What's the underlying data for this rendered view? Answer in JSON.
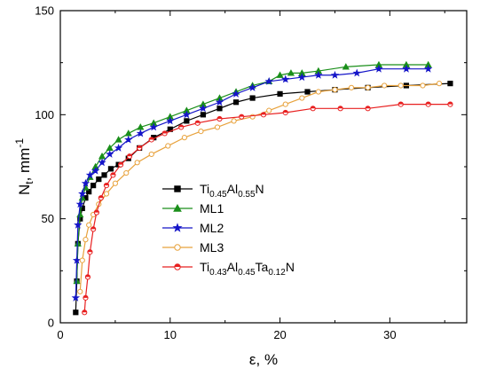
{
  "chart_data": {
    "type": "line",
    "xlabel": "ε, %",
    "ylabel": {
      "main": "N",
      "sub": "t",
      "unit": ", mm",
      "sup": "-1"
    },
    "xlim": [
      0,
      37
    ],
    "ylim": [
      0,
      150
    ],
    "xticks": [
      0,
      10,
      20,
      30
    ],
    "yticks": [
      0,
      50,
      100,
      150
    ],
    "grid": false,
    "legend_position": "center-right",
    "series": [
      {
        "key": "s1",
        "name_parts": [
          {
            "t": "Ti"
          },
          {
            "t": "0.45",
            "s": "sub"
          },
          {
            "t": "Al"
          },
          {
            "t": "0.55",
            "s": "sub"
          },
          {
            "t": "N"
          }
        ],
        "color": "#000000",
        "marker": "square",
        "filled": true,
        "x": [
          1.4,
          1.5,
          1.6,
          1.8,
          2.0,
          2.3,
          2.6,
          3.0,
          3.5,
          4.0,
          4.6,
          5.3,
          6.2,
          7.2,
          8.5,
          10.0,
          11.5,
          13.0,
          14.5,
          16.0,
          17.5,
          20.0,
          22.5,
          25.0,
          28.0,
          31.5,
          35.5
        ],
        "y": [
          5,
          20,
          38,
          50,
          55,
          60,
          63,
          66,
          69,
          71,
          74,
          76,
          79,
          84,
          89,
          93,
          97,
          100,
          103,
          106,
          108,
          110,
          111,
          112,
          113,
          114,
          115
        ]
      },
      {
        "key": "s2",
        "name_parts": [
          {
            "t": "ML1"
          }
        ],
        "color": "#1a8f1a",
        "marker": "triangle",
        "filled": true,
        "x": [
          1.5,
          1.6,
          1.8,
          2.0,
          2.3,
          2.7,
          3.2,
          3.8,
          4.5,
          5.3,
          6.2,
          7.3,
          8.5,
          10.0,
          11.5,
          13.0,
          14.5,
          16.0,
          17.5,
          19.0,
          20.0,
          21.0,
          22.0,
          23.5,
          26.0,
          29.0,
          31.5,
          33.5
        ],
        "y": [
          20,
          38,
          52,
          60,
          65,
          70,
          75,
          80,
          84,
          88,
          91,
          94,
          96,
          99,
          102,
          105,
          108,
          111,
          114,
          116,
          119,
          120,
          120,
          121,
          123,
          124,
          124,
          124
        ]
      },
      {
        "key": "s3",
        "name_parts": [
          {
            "t": "ML2"
          }
        ],
        "color": "#1515c8",
        "marker": "star",
        "filled": true,
        "x": [
          1.4,
          1.5,
          1.6,
          1.8,
          2.0,
          2.3,
          2.7,
          3.2,
          3.8,
          4.5,
          5.3,
          6.2,
          7.3,
          8.5,
          10.0,
          11.5,
          13.0,
          14.5,
          16.0,
          17.5,
          19.0,
          20.5,
          22.0,
          23.5,
          25.0,
          27.0,
          29.0,
          31.5,
          33.5
        ],
        "y": [
          12,
          30,
          47,
          57,
          62,
          67,
          71,
          73,
          77,
          81,
          84,
          88,
          91,
          94,
          97,
          100,
          103,
          106,
          110,
          113,
          116,
          117,
          118,
          119,
          119,
          120,
          122,
          122,
          122
        ]
      },
      {
        "key": "s4",
        "name_parts": [
          {
            "t": "ML3"
          }
        ],
        "color": "#e8a23c",
        "marker": "circle",
        "filled": false,
        "x": [
          1.8,
          2.0,
          2.3,
          2.6,
          3.0,
          3.5,
          4.2,
          5.0,
          6.0,
          7.0,
          8.3,
          9.8,
          11.3,
          12.8,
          14.3,
          15.8,
          17.5,
          19.0,
          20.5,
          22.0,
          23.5,
          25.0,
          26.5,
          28.0,
          29.5,
          31.0,
          33.0,
          34.5
        ],
        "y": [
          15,
          30,
          40,
          47,
          52,
          57,
          62,
          67,
          72,
          77,
          81,
          85,
          89,
          92,
          94,
          97,
          99,
          102,
          105,
          108,
          111,
          112,
          113,
          113,
          114,
          114,
          114,
          115
        ]
      },
      {
        "key": "s5",
        "name_parts": [
          {
            "t": "Ti"
          },
          {
            "t": "0.43",
            "s": "sub"
          },
          {
            "t": "Al"
          },
          {
            "t": "0.45",
            "s": "sub"
          },
          {
            "t": "Ta"
          },
          {
            "t": "0.12",
            "s": "sub"
          },
          {
            "t": "N"
          }
        ],
        "color": "#e82020",
        "marker": "halfcircle",
        "filled": false,
        "x": [
          2.2,
          2.3,
          2.5,
          2.7,
          3.0,
          3.3,
          3.7,
          4.2,
          4.8,
          5.5,
          6.3,
          7.2,
          8.3,
          9.5,
          11.0,
          12.5,
          14.5,
          16.5,
          18.5,
          20.5,
          23.0,
          25.5,
          28.0,
          31.0,
          33.5,
          35.5
        ],
        "y": [
          5,
          12,
          22,
          34,
          45,
          53,
          60,
          66,
          71,
          76,
          80,
          84,
          88,
          91,
          94,
          96,
          98,
          99,
          100,
          101,
          103,
          103,
          103,
          105,
          105,
          105
        ]
      }
    ]
  }
}
